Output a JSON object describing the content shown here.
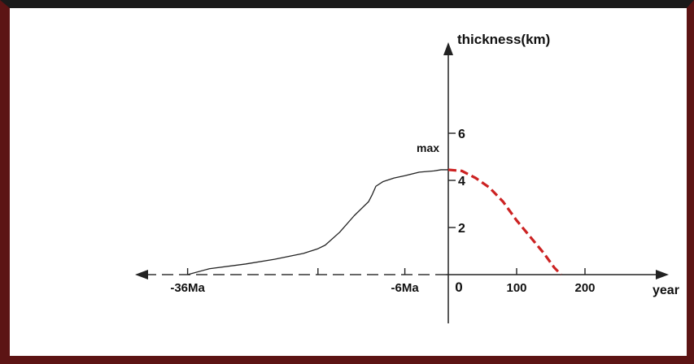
{
  "chart_data": {
    "type": "line",
    "ylabel": "thickness(km)",
    "xlabel": "year",
    "x_ticks": [
      {
        "label": "-36Ma",
        "pos": -36
      },
      {
        "label": "-6Ma",
        "pos": -6
      },
      {
        "label": "0",
        "pos": 0
      },
      {
        "label": "100",
        "pos": 100
      },
      {
        "label": "200",
        "pos": 200
      }
    ],
    "y_ticks": [
      {
        "label": "2",
        "value": 2
      },
      {
        "label": "4",
        "value": 4
      },
      {
        "label": "6",
        "value": 6
      }
    ],
    "annotation": "max",
    "series": [
      {
        "segment": "past",
        "style": "solid",
        "color": "#222222",
        "points": [
          [
            -36,
            0.0
          ],
          [
            -33,
            0.25
          ],
          [
            -28,
            0.45
          ],
          [
            -24,
            0.65
          ],
          [
            -20,
            0.9
          ],
          [
            -18,
            1.1
          ],
          [
            -17,
            1.25
          ],
          [
            -15,
            1.8
          ],
          [
            -13,
            2.5
          ],
          [
            -11,
            3.1
          ],
          [
            -10.5,
            3.4
          ],
          [
            -10,
            3.75
          ],
          [
            -9,
            3.95
          ],
          [
            -7.5,
            4.1
          ],
          [
            -6,
            4.2
          ],
          [
            -4,
            4.35
          ],
          [
            -2,
            4.4
          ],
          [
            -1,
            4.45
          ],
          [
            0,
            4.45
          ]
        ]
      },
      {
        "segment": "future",
        "style": "dashed",
        "color": "#cc2222",
        "points": [
          [
            0,
            4.45
          ],
          [
            20,
            4.4
          ],
          [
            40,
            4.1
          ],
          [
            60,
            3.7
          ],
          [
            80,
            3.1
          ],
          [
            100,
            2.3
          ],
          [
            120,
            1.6
          ],
          [
            140,
            0.9
          ],
          [
            155,
            0.3
          ],
          [
            165,
            0.0
          ]
        ]
      }
    ]
  }
}
